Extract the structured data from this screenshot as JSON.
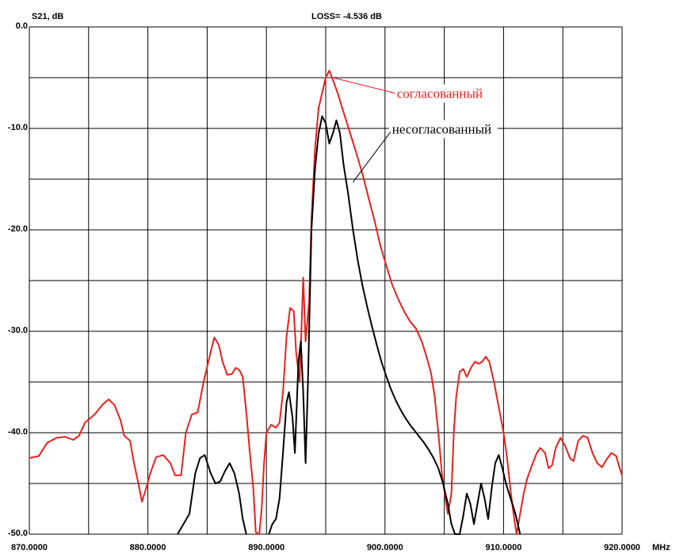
{
  "header": {
    "loss_label": "LOSS=",
    "loss_value": "-4.536 dB"
  },
  "chart_data": {
    "type": "line",
    "title": "",
    "ylabel": "S21, dB",
    "xlabel_unit": "MHz",
    "xlim": [
      870,
      920
    ],
    "ylim": [
      -50,
      0
    ],
    "grid": true,
    "x_ticks": [
      870,
      875,
      880,
      885,
      890,
      895,
      900,
      905,
      910,
      915,
      920
    ],
    "x_tick_labels": [
      {
        "value": 870,
        "label": "870.0000"
      },
      {
        "value": 880,
        "label": "880.0000"
      },
      {
        "value": 890,
        "label": "890.0000"
      },
      {
        "value": 900,
        "label": "900.0000"
      },
      {
        "value": 910,
        "label": "910.0000"
      },
      {
        "value": 920,
        "label": "920.0000"
      }
    ],
    "y_ticks": [
      0,
      -5,
      -10,
      -15,
      -20,
      -25,
      -30,
      -35,
      -40,
      -45,
      -50
    ],
    "y_tick_labels": [
      {
        "value": 0,
        "label": "0.0"
      },
      {
        "value": -10,
        "label": "-10.0"
      },
      {
        "value": -20,
        "label": "-20.0"
      },
      {
        "value": -30,
        "label": "-30.0"
      },
      {
        "value": -40,
        "label": "-40.0"
      },
      {
        "value": -50,
        "label": "-50.0"
      }
    ],
    "series": [
      {
        "name": "согласованный",
        "color": "#e8201c",
        "points": [
          [
            870.0,
            -42.5
          ],
          [
            870.8,
            -42.3
          ],
          [
            871.5,
            -41.0
          ],
          [
            872.3,
            -40.5
          ],
          [
            873.0,
            -40.4
          ],
          [
            873.7,
            -40.7
          ],
          [
            874.2,
            -40.3
          ],
          [
            874.7,
            -39.0
          ],
          [
            875.5,
            -38.2
          ],
          [
            876.2,
            -37.2
          ],
          [
            876.7,
            -36.7
          ],
          [
            877.2,
            -37.3
          ],
          [
            877.7,
            -38.8
          ],
          [
            878.0,
            -40.3
          ],
          [
            878.5,
            -40.8
          ],
          [
            878.8,
            -42.8
          ],
          [
            879.2,
            -45.0
          ],
          [
            879.5,
            -46.8
          ],
          [
            879.8,
            -45.7
          ],
          [
            880.2,
            -44.0
          ],
          [
            880.7,
            -42.4
          ],
          [
            881.3,
            -42.2
          ],
          [
            881.9,
            -43.0
          ],
          [
            882.3,
            -44.2
          ],
          [
            882.8,
            -44.2
          ],
          [
            883.2,
            -40.0
          ],
          [
            883.7,
            -38.2
          ],
          [
            884.2,
            -38.0
          ],
          [
            884.7,
            -35.0
          ],
          [
            885.2,
            -32.5
          ],
          [
            885.6,
            -30.6
          ],
          [
            886.0,
            -31.4
          ],
          [
            886.3,
            -33.0
          ],
          [
            886.7,
            -34.3
          ],
          [
            887.1,
            -34.2
          ],
          [
            887.4,
            -33.6
          ],
          [
            887.7,
            -33.8
          ],
          [
            888.0,
            -34.5
          ],
          [
            888.3,
            -38.0
          ],
          [
            888.6,
            -42.0
          ],
          [
            888.9,
            -45.5
          ],
          [
            889.1,
            -49.8
          ],
          [
            889.4,
            -50.0
          ],
          [
            889.6,
            -47.5
          ],
          [
            889.8,
            -43.0
          ],
          [
            890.0,
            -40.0
          ],
          [
            890.4,
            -39.2
          ],
          [
            890.8,
            -39.5
          ],
          [
            891.1,
            -39.0
          ],
          [
            891.4,
            -36.0
          ],
          [
            891.7,
            -30.5
          ],
          [
            892.0,
            -27.7
          ],
          [
            892.3,
            -28.0
          ],
          [
            892.5,
            -32.0
          ],
          [
            892.8,
            -35.0
          ],
          [
            893.1,
            -24.7
          ],
          [
            893.3,
            -31.0
          ],
          [
            893.6,
            -27.0
          ],
          [
            893.8,
            -19.0
          ],
          [
            894.1,
            -12.0
          ],
          [
            894.4,
            -8.0
          ],
          [
            894.7,
            -6.5
          ],
          [
            895.0,
            -5.0
          ],
          [
            895.3,
            -4.3
          ],
          [
            895.6,
            -5.2
          ],
          [
            896.0,
            -6.5
          ],
          [
            896.4,
            -8.0
          ],
          [
            896.8,
            -9.5
          ],
          [
            897.2,
            -11.0
          ],
          [
            897.6,
            -12.5
          ],
          [
            898.1,
            -14.5
          ],
          [
            898.6,
            -16.8
          ],
          [
            899.1,
            -19.0
          ],
          [
            899.6,
            -21.5
          ],
          [
            900.1,
            -23.5
          ],
          [
            900.6,
            -25.4
          ],
          [
            901.1,
            -26.8
          ],
          [
            901.6,
            -28.0
          ],
          [
            902.1,
            -29.0
          ],
          [
            902.6,
            -29.7
          ],
          [
            903.1,
            -31.0
          ],
          [
            903.5,
            -32.5
          ],
          [
            903.9,
            -34.2
          ],
          [
            904.2,
            -36.5
          ],
          [
            904.5,
            -40.0
          ],
          [
            904.8,
            -44.0
          ],
          [
            905.1,
            -46.5
          ],
          [
            905.3,
            -48.0
          ],
          [
            905.6,
            -46.0
          ],
          [
            905.8,
            -40.0
          ],
          [
            906.0,
            -36.5
          ],
          [
            906.3,
            -34.0
          ],
          [
            906.6,
            -33.7
          ],
          [
            906.9,
            -34.5
          ],
          [
            907.3,
            -33.5
          ],
          [
            907.6,
            -33.0
          ],
          [
            907.9,
            -33.2
          ],
          [
            908.2,
            -33.0
          ],
          [
            908.5,
            -32.5
          ],
          [
            908.8,
            -33.0
          ],
          [
            909.2,
            -35.0
          ],
          [
            909.6,
            -37.5
          ],
          [
            910.0,
            -40.0
          ],
          [
            910.3,
            -42.5
          ],
          [
            910.6,
            -45.8
          ],
          [
            910.9,
            -48.5
          ],
          [
            911.1,
            -50.0
          ],
          [
            911.4,
            -48.0
          ],
          [
            911.7,
            -46.0
          ],
          [
            912.0,
            -44.5
          ],
          [
            912.4,
            -43.2
          ],
          [
            912.8,
            -42.0
          ],
          [
            913.1,
            -41.5
          ],
          [
            913.5,
            -42.0
          ],
          [
            913.8,
            -43.5
          ],
          [
            914.1,
            -43.2
          ],
          [
            914.4,
            -41.5
          ],
          [
            914.8,
            -40.5
          ],
          [
            915.2,
            -41.3
          ],
          [
            915.6,
            -42.5
          ],
          [
            915.9,
            -42.8
          ],
          [
            916.3,
            -40.8
          ],
          [
            916.7,
            -40.3
          ],
          [
            917.1,
            -40.5
          ],
          [
            917.5,
            -42.0
          ],
          [
            917.9,
            -43.0
          ],
          [
            918.3,
            -43.4
          ],
          [
            918.7,
            -42.6
          ],
          [
            919.1,
            -42.0
          ],
          [
            919.5,
            -42.3
          ],
          [
            919.8,
            -43.5
          ],
          [
            920.0,
            -44.2
          ]
        ]
      },
      {
        "name": "несогласованный",
        "color": "#000000",
        "points": [
          [
            882.5,
            -50.0
          ],
          [
            883.0,
            -49.0
          ],
          [
            883.5,
            -48.0
          ],
          [
            884.0,
            -44.0
          ],
          [
            884.4,
            -42.5
          ],
          [
            884.8,
            -42.2
          ],
          [
            885.3,
            -44.0
          ],
          [
            885.7,
            -45.0
          ],
          [
            886.1,
            -44.8
          ],
          [
            886.5,
            -43.8
          ],
          [
            886.9,
            -43.0
          ],
          [
            887.3,
            -44.0
          ],
          [
            887.7,
            -46.0
          ],
          [
            888.0,
            -48.5
          ],
          [
            888.3,
            -50.0
          ],
          [
            890.2,
            -50.0
          ],
          [
            890.5,
            -49.0
          ],
          [
            890.8,
            -48.5
          ],
          [
            891.1,
            -46.5
          ],
          [
            891.4,
            -42.0
          ],
          [
            891.7,
            -37.0
          ],
          [
            891.9,
            -36.0
          ],
          [
            892.2,
            -38.5
          ],
          [
            892.4,
            -42.0
          ],
          [
            892.7,
            -33.0
          ],
          [
            892.9,
            -31.0
          ],
          [
            893.1,
            -36.0
          ],
          [
            893.3,
            -43.0
          ],
          [
            893.5,
            -35.0
          ],
          [
            893.8,
            -20.0
          ],
          [
            894.1,
            -14.0
          ],
          [
            894.4,
            -10.5
          ],
          [
            894.7,
            -8.8
          ],
          [
            895.0,
            -9.5
          ],
          [
            895.3,
            -11.5
          ],
          [
            895.6,
            -10.5
          ],
          [
            895.9,
            -9.2
          ],
          [
            896.2,
            -10.5
          ],
          [
            896.5,
            -13.5
          ],
          [
            896.9,
            -16.5
          ],
          [
            897.3,
            -20.0
          ],
          [
            897.7,
            -23.0
          ],
          [
            898.1,
            -25.5
          ],
          [
            898.5,
            -27.6
          ],
          [
            898.9,
            -29.5
          ],
          [
            899.3,
            -31.3
          ],
          [
            899.7,
            -33.0
          ],
          [
            900.1,
            -34.4
          ],
          [
            900.5,
            -35.7
          ],
          [
            900.9,
            -36.8
          ],
          [
            901.3,
            -37.7
          ],
          [
            901.7,
            -38.5
          ],
          [
            902.1,
            -39.2
          ],
          [
            902.5,
            -39.8
          ],
          [
            902.9,
            -40.4
          ],
          [
            903.3,
            -41.0
          ],
          [
            903.7,
            -41.7
          ],
          [
            904.1,
            -42.5
          ],
          [
            904.5,
            -43.5
          ],
          [
            904.9,
            -45.0
          ],
          [
            905.3,
            -47.0
          ],
          [
            905.6,
            -49.0
          ],
          [
            905.9,
            -50.0
          ],
          [
            906.3,
            -50.0
          ],
          [
            906.6,
            -48.2
          ],
          [
            906.9,
            -46.0
          ],
          [
            907.2,
            -47.0
          ],
          [
            907.5,
            -49.0
          ],
          [
            907.8,
            -47.0
          ],
          [
            908.1,
            -45.0
          ],
          [
            908.4,
            -46.5
          ],
          [
            908.7,
            -48.5
          ],
          [
            909.0,
            -45.5
          ],
          [
            909.3,
            -43.0
          ],
          [
            909.6,
            -42.2
          ],
          [
            909.9,
            -43.5
          ],
          [
            910.2,
            -45.0
          ],
          [
            910.6,
            -46.5
          ],
          [
            911.0,
            -48.0
          ],
          [
            911.4,
            -50.0
          ]
        ]
      }
    ],
    "annotations": [
      {
        "text": "согласованный",
        "color": "#e8201c",
        "target": [
          895.6,
          -5.0
        ],
        "label": [
          901.0,
          -7.0
        ]
      },
      {
        "text": "несогласованный",
        "color": "#000000",
        "target": [
          897.3,
          -15.3
        ],
        "label": [
          900.6,
          -10.5
        ]
      }
    ]
  }
}
